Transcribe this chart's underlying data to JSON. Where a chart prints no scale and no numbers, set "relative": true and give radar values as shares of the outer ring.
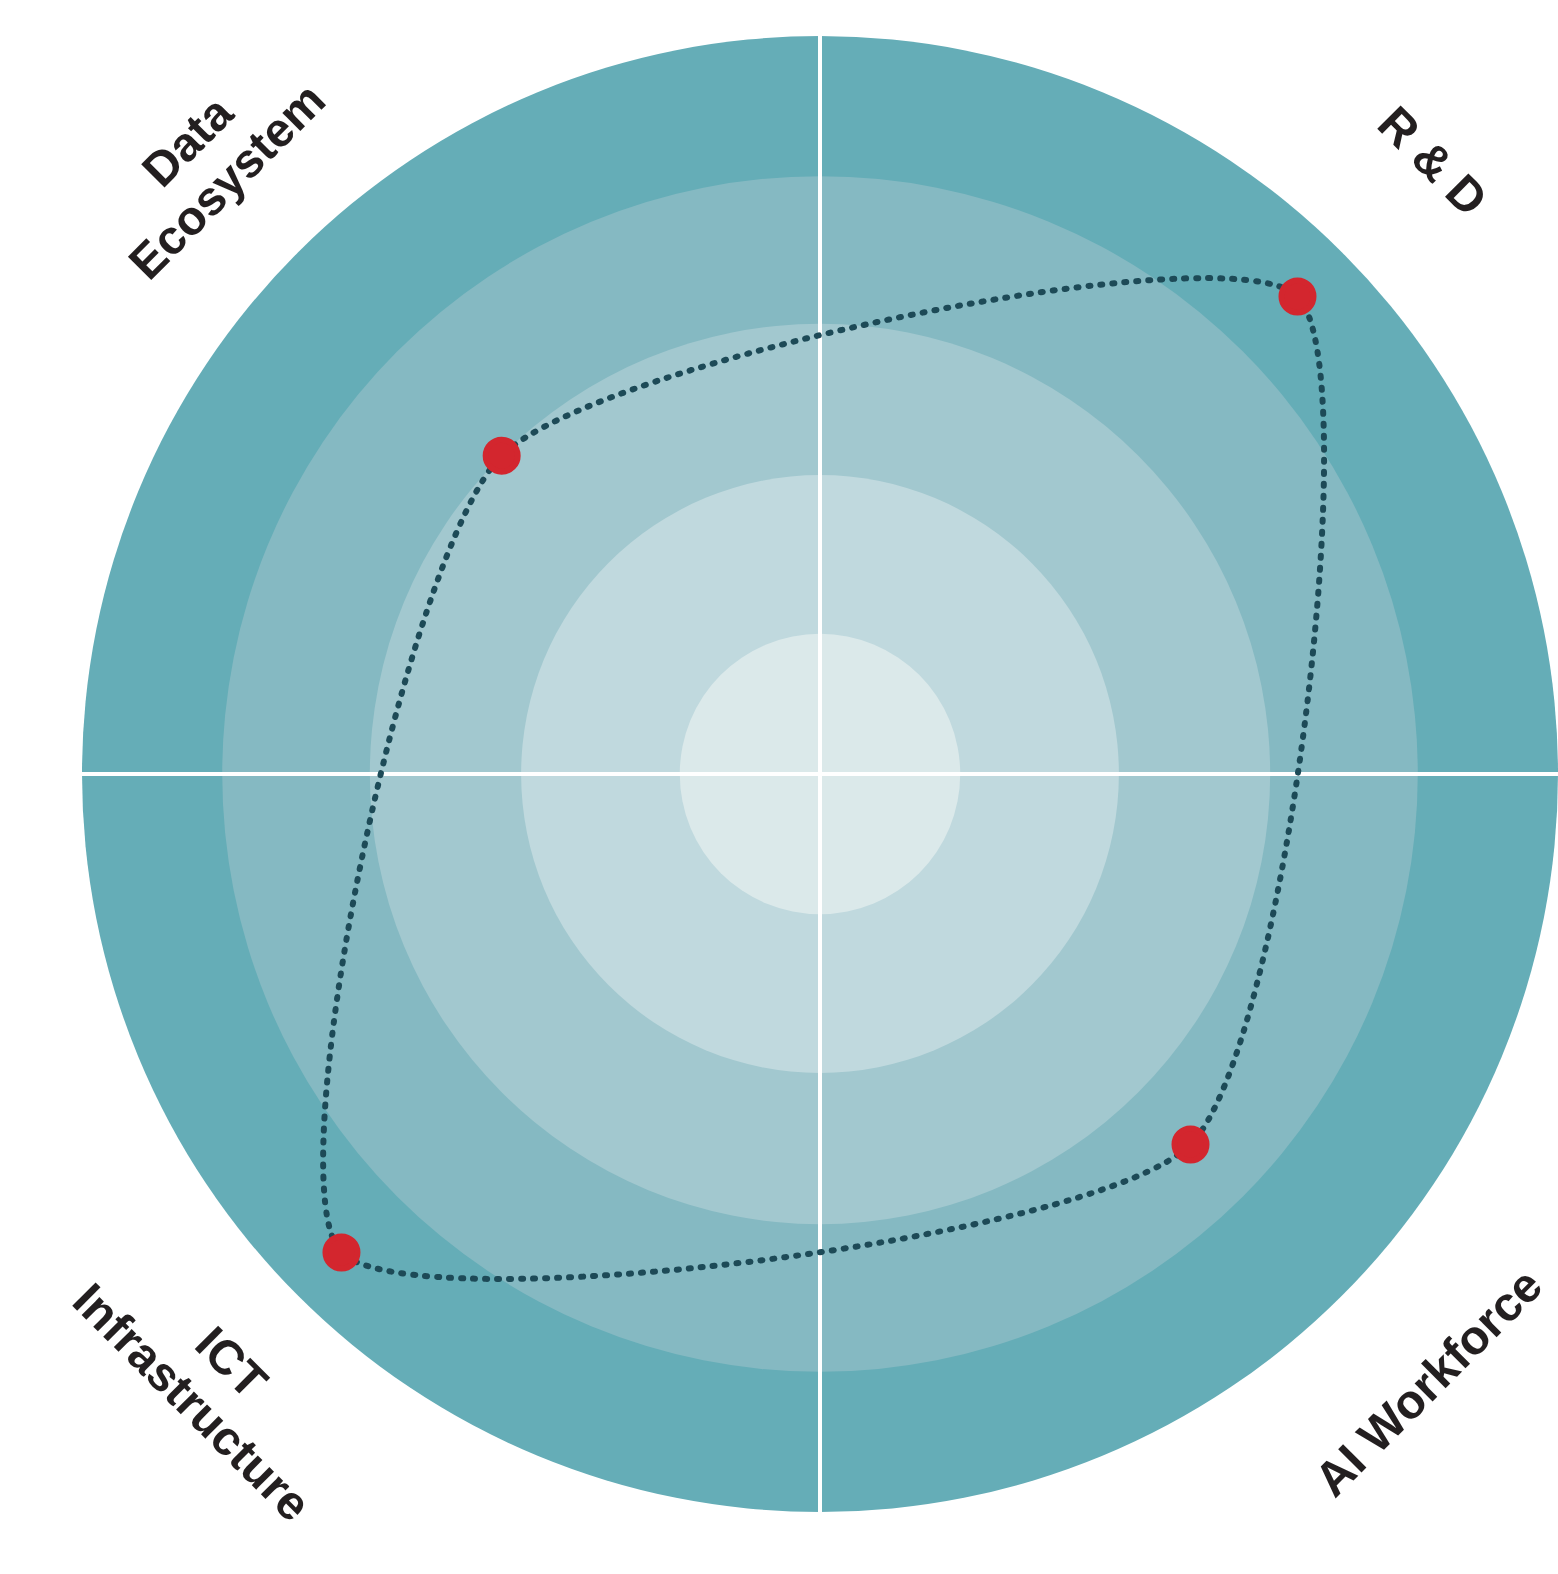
{
  "chart_data": {
    "type": "radar",
    "relative": true,
    "categories": [
      "R & D",
      "AI Workforce",
      "ICT Infrastructure",
      "Data Ecosystem"
    ],
    "series": [
      {
        "color": "#1d4a57",
        "colors": [
          "#d3262e",
          "#d3262e",
          "#d3262e",
          "#d3262e"
        ],
        "values": [
          0.915,
          0.71,
          0.917,
          0.61
        ]
      }
    ],
    "marker": "circle",
    "line_style": "dotted",
    "legend": false
  }
}
